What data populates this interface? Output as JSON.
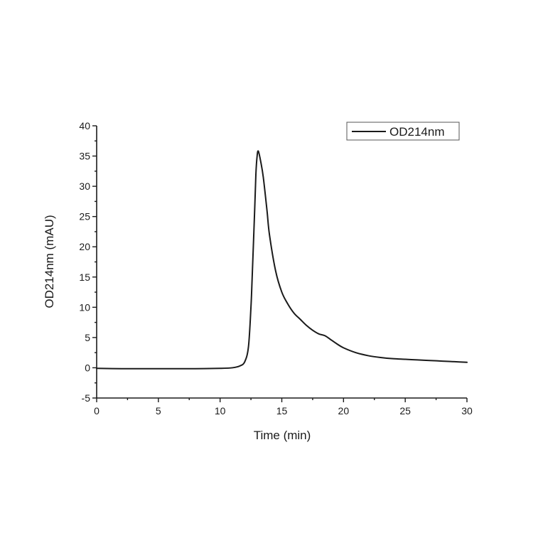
{
  "chart_data": {
    "type": "line",
    "title": "",
    "xlabel": "Time (min)",
    "ylabel": "OD214nm (mAU)",
    "xlim": [
      0,
      30
    ],
    "ylim": [
      -5,
      40
    ],
    "xticks": [
      0,
      5,
      10,
      15,
      20,
      25,
      30
    ],
    "yticks": [
      -5,
      0,
      5,
      10,
      15,
      20,
      25,
      30,
      35,
      40
    ],
    "grid": false,
    "legend_position": "upper right",
    "series": [
      {
        "name": "OD214nm",
        "color": "#1a1a1a",
        "x": [
          0,
          2,
          4,
          6,
          8,
          10,
          11,
          11.6,
          12.0,
          12.3,
          12.5,
          12.6,
          12.8,
          12.9,
          13.0,
          13.1,
          13.3,
          13.5,
          13.8,
          14.0,
          14.5,
          15.0,
          15.5,
          16.0,
          16.5,
          17.0,
          17.5,
          18.0,
          18.5,
          19.0,
          19.5,
          20.0,
          21.0,
          22.0,
          23.0,
          24.0,
          25.0,
          26.0,
          27.0,
          28.0,
          29.0,
          30.0
        ],
        "y": [
          -0.1,
          -0.15,
          -0.15,
          -0.15,
          -0.15,
          -0.1,
          0.0,
          0.3,
          1.0,
          3.5,
          10.0,
          15.0,
          26.0,
          32.0,
          35.0,
          35.8,
          34.0,
          31.5,
          26.0,
          22.0,
          16.0,
          12.5,
          10.5,
          9.0,
          8.0,
          7.0,
          6.2,
          5.6,
          5.3,
          4.6,
          3.9,
          3.3,
          2.5,
          2.0,
          1.7,
          1.5,
          1.4,
          1.3,
          1.2,
          1.1,
          1.0,
          0.9
        ]
      }
    ]
  },
  "labels": {
    "xlabel": "Time (min)",
    "ylabel": "OD214nm (mAU)",
    "legend": "OD214nm"
  }
}
